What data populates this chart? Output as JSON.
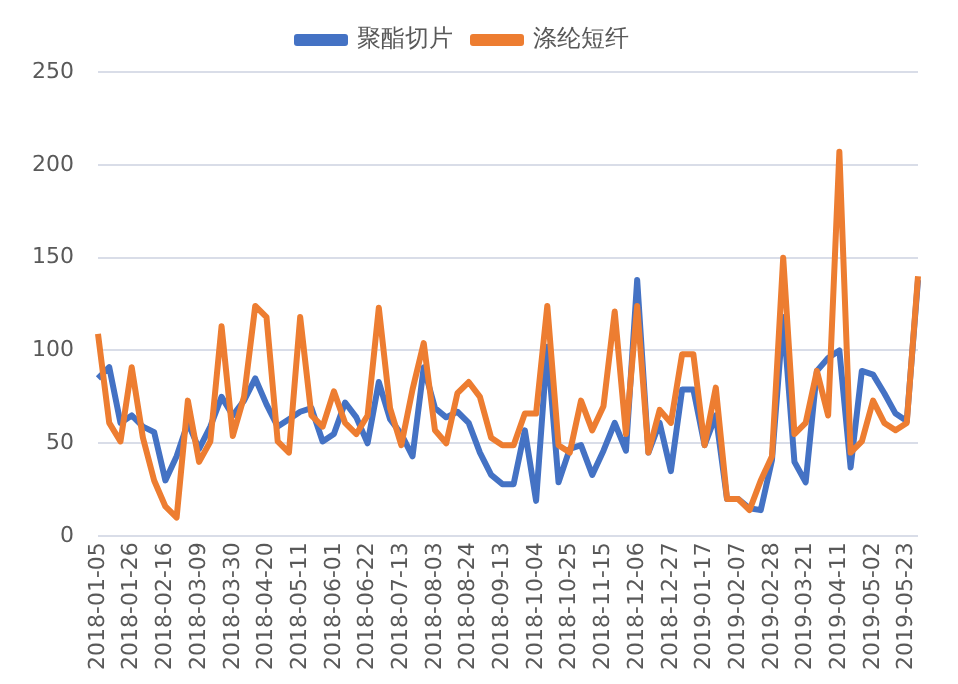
{
  "chart_data": {
    "type": "line",
    "categories": [
      "2018-01-05",
      null,
      null,
      "2018-01-26",
      null,
      null,
      "2018-02-16",
      null,
      null,
      "2018-03-09",
      null,
      null,
      "2018-03-30",
      null,
      null,
      "2018-04-20",
      null,
      null,
      "2018-05-11",
      null,
      null,
      "2018-06-01",
      null,
      null,
      "2018-06-22",
      null,
      null,
      "2018-07-13",
      null,
      null,
      "2018-08-03",
      null,
      null,
      "2018-08-24",
      null,
      null,
      "2018-09-13",
      null,
      null,
      "2018-10-04",
      null,
      null,
      "2018-10-25",
      null,
      null,
      "2018-11-15",
      null,
      null,
      "2018-12-06",
      null,
      null,
      "2018-12-27",
      null,
      null,
      "2019-01-17",
      null,
      null,
      "2019-02-07",
      null,
      null,
      "2019-02-28",
      null,
      null,
      "2019-03-21",
      null,
      null,
      "2019-04-11",
      null,
      null,
      "2019-05-02",
      null,
      null,
      "2019-05-23",
      null
    ],
    "series": [
      {
        "name": "聚酯切片",
        "color": "#4472c4",
        "values": [
          85,
          91,
          61,
          65,
          59,
          56,
          30,
          43,
          61,
          47,
          59,
          75,
          65,
          73,
          85,
          71,
          59,
          63,
          67,
          69,
          51,
          55,
          72,
          64,
          50,
          83,
          63,
          55,
          43,
          91,
          69,
          64,
          67,
          61,
          45,
          33,
          28,
          28,
          57,
          19,
          102,
          29,
          47,
          49,
          33,
          46,
          61,
          46,
          138,
          45,
          61,
          35,
          79,
          79,
          49,
          65,
          20,
          20,
          15,
          14,
          41,
          118,
          40,
          29,
          89,
          96,
          100,
          37,
          89,
          87,
          77,
          66,
          62,
          138
        ]
      },
      {
        "name": "涤纶短纤",
        "color": "#ed7d31",
        "values": [
          109,
          61,
          51,
          91,
          53,
          30,
          16,
          10,
          73,
          40,
          51,
          113,
          54,
          75,
          124,
          118,
          51,
          45,
          118,
          65,
          59,
          78,
          61,
          55,
          65,
          123,
          69,
          49,
          79,
          104,
          57,
          50,
          77,
          83,
          75,
          53,
          49,
          49,
          66,
          66,
          124,
          49,
          45,
          73,
          57,
          70,
          121,
          55,
          124,
          45,
          68,
          61,
          98,
          98,
          49,
          80,
          20,
          20,
          14,
          30,
          43,
          150,
          55,
          61,
          89,
          65,
          207,
          45,
          51,
          73,
          61,
          57,
          61,
          140
        ]
      }
    ],
    "ylim": [
      0,
      250
    ],
    "yticks": [
      0,
      50,
      100,
      150,
      200,
      250
    ],
    "grid": "y",
    "legend": "top",
    "marker": "none",
    "line_style": "solid"
  }
}
